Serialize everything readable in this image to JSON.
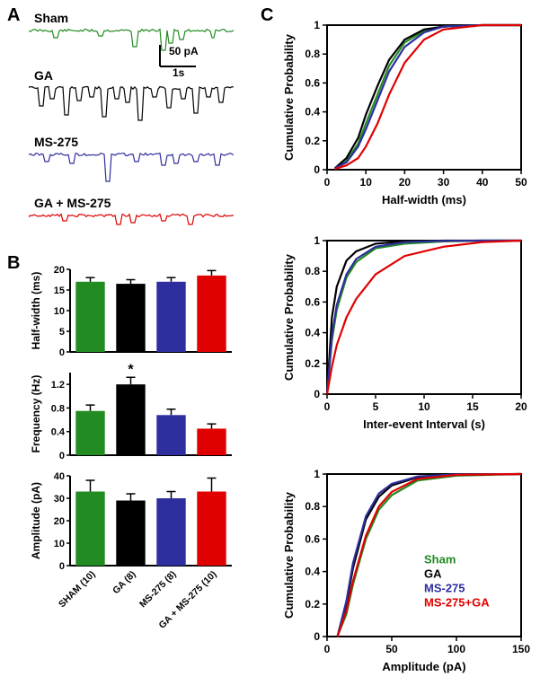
{
  "panel_labels": {
    "A": "A",
    "B": "B",
    "C": "C"
  },
  "colors": {
    "sham": "#228b22",
    "ga": "#000000",
    "ms275": "#2e2e9e",
    "ms275ga": "#e00000",
    "axis": "#000000",
    "bg": "#ffffff"
  },
  "traces": {
    "labels": {
      "sham": "Sham",
      "ga": "GA",
      "ms275": "MS-275",
      "ms275ga": "GA + MS-275"
    },
    "scale": {
      "x_label": "1s",
      "y_label": "50 pA"
    }
  },
  "bar_charts": {
    "categories": [
      "SHAM (10)",
      "GA (8)",
      "MS-275 (8)",
      "GA + MS-275 (10)"
    ],
    "halfwidth": {
      "ylabel": "Half-width (ms)",
      "ylim": [
        0,
        20
      ],
      "yticks": [
        0,
        5,
        10,
        15,
        20
      ],
      "values": [
        17,
        16.5,
        17,
        18.5
      ],
      "errors": [
        1,
        1,
        1,
        1.2
      ],
      "colors": [
        "#228b22",
        "#000000",
        "#2e2e9e",
        "#e00000"
      ]
    },
    "frequency": {
      "ylabel": "Frequency (Hz)",
      "ylim": [
        0,
        1.4
      ],
      "yticks": [
        0,
        0.4,
        0.8,
        1.2
      ],
      "values": [
        0.75,
        1.2,
        0.68,
        0.45
      ],
      "errors": [
        0.1,
        0.12,
        0.1,
        0.08
      ],
      "colors": [
        "#228b22",
        "#000000",
        "#2e2e9e",
        "#e00000"
      ],
      "sig": {
        "index": 1,
        "marker": "*"
      }
    },
    "amplitude": {
      "ylabel": "Amplitude (pA)",
      "ylim": [
        0,
        40
      ],
      "yticks": [
        0,
        10,
        20,
        30,
        40
      ],
      "values": [
        33,
        29,
        30,
        33
      ],
      "errors": [
        5,
        3,
        3,
        6
      ],
      "colors": [
        "#228b22",
        "#000000",
        "#2e2e9e",
        "#e00000"
      ]
    }
  },
  "cdf_charts": {
    "halfwidth": {
      "xlabel": "Half-width (ms)",
      "ylabel": "Cumulative Probability",
      "xlim": [
        0,
        50
      ],
      "xticks": [
        0,
        10,
        20,
        30,
        40,
        50
      ],
      "ylim": [
        0,
        1
      ],
      "yticks": [
        0,
        0.2,
        0.4,
        0.6,
        0.8,
        1
      ],
      "series": {
        "sham": {
          "color": "#228b22",
          "x": [
            2,
            5,
            8,
            10,
            13,
            16,
            20,
            25,
            30,
            40,
            50
          ],
          "y": [
            0.01,
            0.06,
            0.18,
            0.32,
            0.52,
            0.72,
            0.88,
            0.96,
            0.99,
            1,
            1
          ]
        },
        "ga": {
          "color": "#000000",
          "x": [
            2,
            5,
            8,
            10,
            13,
            16,
            20,
            25,
            30,
            40,
            50
          ],
          "y": [
            0.01,
            0.08,
            0.22,
            0.38,
            0.58,
            0.76,
            0.9,
            0.97,
            0.99,
            1,
            1
          ]
        },
        "ms275": {
          "color": "#2e2e9e",
          "x": [
            2,
            5,
            8,
            10,
            13,
            16,
            20,
            25,
            30,
            40,
            50
          ],
          "y": [
            0.01,
            0.05,
            0.16,
            0.28,
            0.48,
            0.68,
            0.85,
            0.95,
            0.99,
            1,
            1
          ]
        },
        "ms275ga": {
          "color": "#e00000",
          "x": [
            2,
            5,
            8,
            10,
            13,
            16,
            20,
            25,
            30,
            40,
            50
          ],
          "y": [
            0.005,
            0.03,
            0.08,
            0.16,
            0.32,
            0.52,
            0.74,
            0.9,
            0.97,
            1,
            1
          ]
        }
      }
    },
    "iei": {
      "xlabel": "Inter-event Interval (s)",
      "ylabel": "Cumulative Probability",
      "xlim": [
        0,
        20
      ],
      "xticks": [
        0,
        5,
        10,
        15,
        20
      ],
      "ylim": [
        0,
        1
      ],
      "yticks": [
        0,
        0.2,
        0.4,
        0.6,
        0.8,
        1
      ],
      "series": {
        "sham": {
          "color": "#228b22",
          "x": [
            0,
            0.5,
            1,
            2,
            3,
            5,
            8,
            12,
            16,
            20
          ],
          "y": [
            0,
            0.35,
            0.55,
            0.76,
            0.86,
            0.95,
            0.98,
            0.995,
            1,
            1
          ]
        },
        "ga": {
          "color": "#000000",
          "x": [
            0,
            0.5,
            1,
            2,
            3,
            5,
            8,
            12,
            16,
            20
          ],
          "y": [
            0,
            0.5,
            0.7,
            0.87,
            0.93,
            0.98,
            0.995,
            1,
            1,
            1
          ]
        },
        "ms275": {
          "color": "#2e2e9e",
          "x": [
            0,
            0.5,
            1,
            2,
            3,
            5,
            8,
            12,
            16,
            20
          ],
          "y": [
            0,
            0.38,
            0.58,
            0.78,
            0.88,
            0.96,
            0.99,
            0.998,
            1,
            1
          ]
        },
        "ms275ga": {
          "color": "#e00000",
          "x": [
            0,
            0.5,
            1,
            2,
            3,
            5,
            8,
            12,
            16,
            20
          ],
          "y": [
            0,
            0.18,
            0.32,
            0.5,
            0.62,
            0.78,
            0.9,
            0.96,
            0.99,
            1
          ]
        }
      }
    },
    "amplitude": {
      "xlabel": "Amplitude (pA)",
      "ylabel": "Cumulative Probability",
      "xlim": [
        0,
        150
      ],
      "xticks": [
        0,
        50,
        100,
        150
      ],
      "ylim": [
        0,
        1
      ],
      "yticks": [
        0,
        0.2,
        0.4,
        0.6,
        0.8,
        1
      ],
      "series": {
        "sham": {
          "color": "#228b22",
          "x": [
            8,
            15,
            20,
            30,
            40,
            50,
            70,
            100,
            150
          ],
          "y": [
            0,
            0.14,
            0.32,
            0.6,
            0.78,
            0.87,
            0.96,
            0.99,
            1
          ]
        },
        "ga": {
          "color": "#000000",
          "x": [
            8,
            15,
            20,
            30,
            40,
            50,
            70,
            100,
            150
          ],
          "y": [
            0,
            0.2,
            0.42,
            0.72,
            0.86,
            0.93,
            0.98,
            0.995,
            1
          ]
        },
        "ms275": {
          "color": "#2e2e9e",
          "x": [
            8,
            15,
            20,
            30,
            40,
            50,
            70,
            100,
            150
          ],
          "y": [
            0,
            0.22,
            0.45,
            0.74,
            0.88,
            0.94,
            0.985,
            0.998,
            1
          ]
        },
        "ms275ga": {
          "color": "#e00000",
          "x": [
            8,
            15,
            20,
            30,
            40,
            50,
            70,
            100,
            150
          ],
          "y": [
            0,
            0.16,
            0.34,
            0.62,
            0.8,
            0.89,
            0.97,
            0.995,
            1
          ]
        }
      },
      "legend": [
        {
          "label": "Sham",
          "color": "#228b22"
        },
        {
          "label": "GA",
          "color": "#000000"
        },
        {
          "label": "MS-275",
          "color": "#2e2e9e"
        },
        {
          "label": "MS-275+GA",
          "color": "#e00000"
        }
      ]
    }
  }
}
